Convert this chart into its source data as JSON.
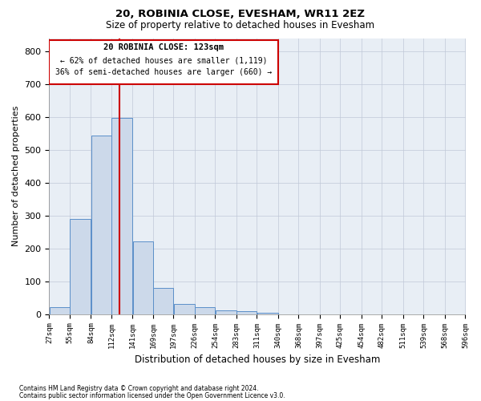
{
  "title1": "20, ROBINIA CLOSE, EVESHAM, WR11 2EZ",
  "title2": "Size of property relative to detached houses in Evesham",
  "xlabel": "Distribution of detached houses by size in Evesham",
  "ylabel": "Number of detached properties",
  "bar_color": "#ccd9ea",
  "bar_edge_color": "#5b8fc9",
  "grid_color": "#c0c8d8",
  "background_color": "#e8eef5",
  "vline_x": 123,
  "vline_color": "#cc0000",
  "annotation_title": "20 ROBINIA CLOSE: 123sqm",
  "annotation_line1": "← 62% of detached houses are smaller (1,119)",
  "annotation_line2": "36% of semi-detached houses are larger (660) →",
  "footnote1": "Contains HM Land Registry data © Crown copyright and database right 2024.",
  "footnote2": "Contains public sector information licensed under the Open Government Licence v3.0.",
  "bin_edges": [
    27,
    55,
    84,
    112,
    141,
    169,
    197,
    226,
    254,
    283,
    311,
    340,
    368,
    397,
    425,
    454,
    482,
    511,
    539,
    568,
    596
  ],
  "bin_labels": [
    "27sqm",
    "55sqm",
    "84sqm",
    "112sqm",
    "141sqm",
    "169sqm",
    "197sqm",
    "226sqm",
    "254sqm",
    "283sqm",
    "311sqm",
    "340sqm",
    "368sqm",
    "397sqm",
    "425sqm",
    "454sqm",
    "482sqm",
    "511sqm",
    "539sqm",
    "568sqm",
    "596sqm"
  ],
  "bar_heights": [
    22,
    290,
    543,
    597,
    222,
    80,
    32,
    22,
    12,
    8,
    5,
    0,
    0,
    0,
    0,
    0,
    0,
    0,
    0,
    0
  ],
  "ylim": [
    0,
    840
  ],
  "yticks": [
    0,
    100,
    200,
    300,
    400,
    500,
    600,
    700,
    800
  ]
}
